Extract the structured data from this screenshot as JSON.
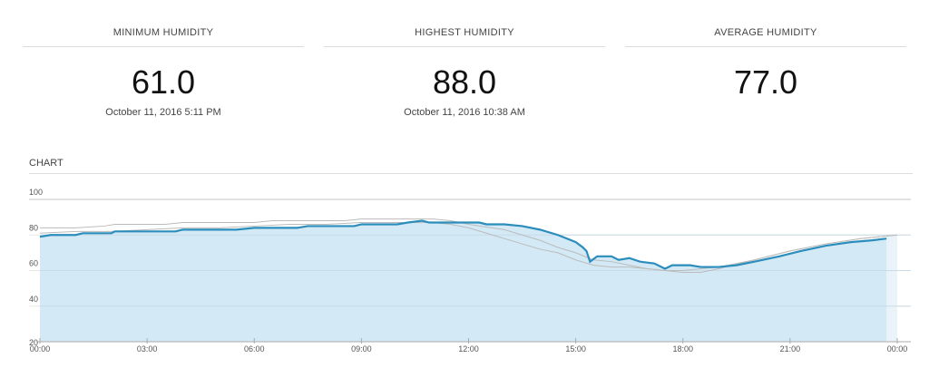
{
  "stats": [
    {
      "label": "MINIMUM HUMIDITY",
      "value": "61.0",
      "date": "October 11, 2016 5:11 PM"
    },
    {
      "label": "HIGHEST HUMIDITY",
      "value": "88.0",
      "date": "October 11, 2016 10:38 AM"
    },
    {
      "label": "AVERAGE HUMIDITY",
      "value": "77.0",
      "date": ""
    }
  ],
  "chart_title": "CHART",
  "chart_data": {
    "type": "area",
    "ylim": [
      20,
      100
    ],
    "yticks": [
      20,
      40,
      60,
      80,
      100
    ],
    "xlim": [
      0,
      24
    ],
    "xticks": [
      {
        "v": 0,
        "label": "00:00"
      },
      {
        "v": 3,
        "label": "03:00"
      },
      {
        "v": 6,
        "label": "06:00"
      },
      {
        "v": 9,
        "label": "09:00"
      },
      {
        "v": 12,
        "label": "12:00"
      },
      {
        "v": 15,
        "label": "15:00"
      },
      {
        "v": 18,
        "label": "18:00"
      },
      {
        "v": 21,
        "label": "21:00"
      },
      {
        "v": 24,
        "label": "00:00"
      }
    ],
    "grid": true,
    "colors": {
      "main": "#2b8dbb",
      "fill": "#d3e9f6",
      "compare": "#bbbbbb"
    },
    "series": [
      {
        "role": "main",
        "x": [
          0,
          0.3,
          1,
          1.2,
          2,
          2.1,
          3.8,
          4,
          5.5,
          6,
          7.2,
          7.5,
          8.8,
          9,
          10,
          10.3,
          10.7,
          10.9,
          12.3,
          12.5,
          13,
          13.5,
          14,
          14.5,
          15,
          15.2,
          15.3,
          15.4,
          15.6,
          16,
          16.2,
          16.5,
          16.8,
          17.2,
          17.5,
          17.7,
          18.2,
          18.5,
          19,
          19.5,
          20,
          20.7,
          21.3,
          22,
          22.7,
          23.3,
          23.7
        ],
        "y": [
          79,
          80,
          80,
          81,
          81,
          82,
          82,
          83,
          83,
          84,
          84,
          85,
          85,
          86,
          86,
          87,
          88,
          87,
          87,
          86,
          86,
          85,
          83,
          80,
          76,
          73,
          71,
          65,
          68,
          68,
          66,
          67,
          65,
          64,
          61,
          63,
          63,
          62,
          62,
          63,
          65,
          68,
          71,
          74,
          76,
          77,
          78
        ]
      },
      {
        "role": "compare",
        "x": [
          0,
          1,
          1.8,
          2.1,
          3.5,
          4,
          6,
          6.5,
          8.5,
          9,
          11,
          11.5,
          12,
          13,
          14,
          14.5,
          15,
          15.5,
          16,
          16.5,
          17,
          18,
          18.5,
          19,
          20,
          21,
          22,
          23,
          24
        ],
        "y": [
          84,
          84,
          85,
          86,
          86,
          87,
          87,
          88,
          88,
          89,
          89,
          88,
          86,
          83,
          77,
          73,
          70,
          66,
          65,
          63,
          61,
          59,
          59,
          61,
          66,
          71,
          75,
          78,
          80
        ]
      },
      {
        "role": "compare",
        "x": [
          0,
          1,
          2,
          3,
          4,
          5,
          6,
          7,
          8,
          9,
          10,
          11,
          11.5,
          12,
          12.5,
          13,
          13.5,
          14,
          14.5,
          15,
          15.5,
          16,
          16.5,
          17,
          17.5,
          18,
          18.5,
          19,
          20,
          21,
          22,
          23,
          24
        ],
        "y": [
          81,
          82,
          82,
          83,
          84,
          84,
          85,
          86,
          86,
          87,
          87,
          87,
          86,
          84,
          81,
          78,
          75,
          72,
          70,
          66,
          63,
          62,
          62,
          61,
          60,
          60,
          61,
          62,
          66,
          71,
          75,
          78,
          80
        ]
      }
    ]
  }
}
